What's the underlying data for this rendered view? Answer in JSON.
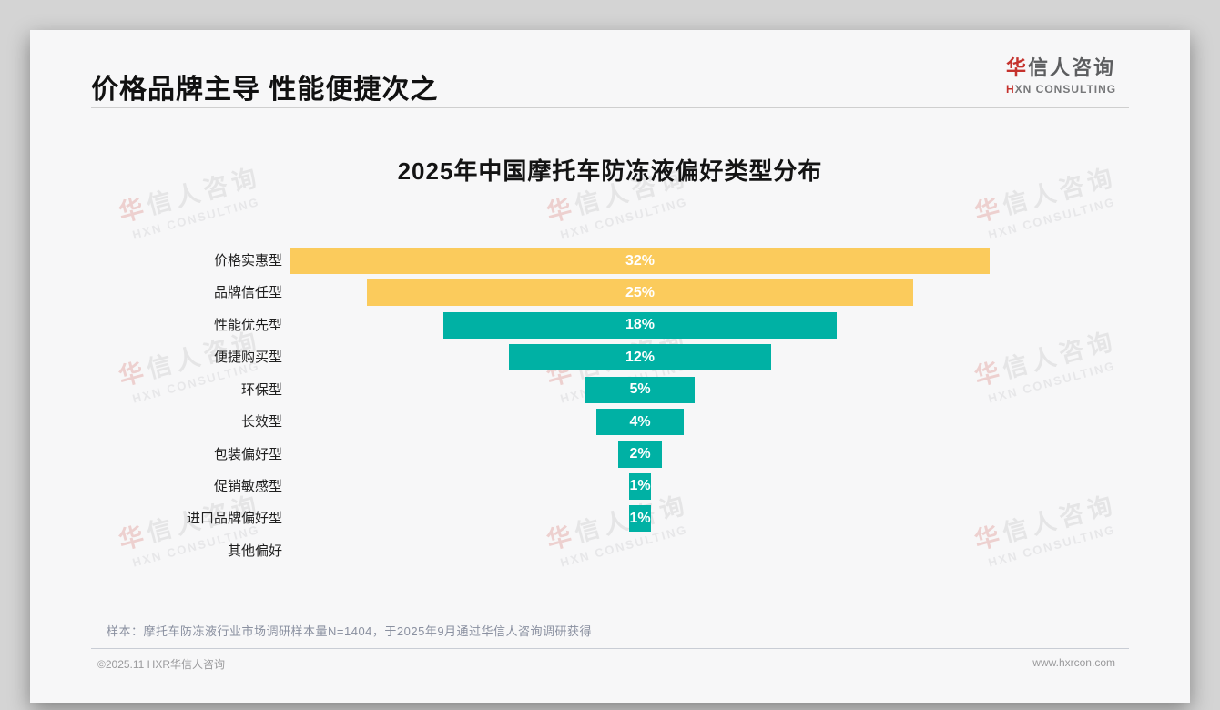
{
  "header": {
    "title": "价格品牌主导 性能便捷次之"
  },
  "logo": {
    "cn_first": "华",
    "cn_rest": "信人咨询",
    "en_first": "H",
    "en_rest": "XN CONSULTING"
  },
  "watermark": {
    "cn_first": "华",
    "cn_rest": "信人咨询",
    "en": "HXN CONSULTING"
  },
  "chart_data": {
    "type": "bar",
    "subtype": "centered-funnel-horizontal",
    "title": "2025年中国摩托车防冻液偏好类型分布",
    "categories": [
      "价格实惠型",
      "品牌信任型",
      "性能优先型",
      "便捷购买型",
      "环保型",
      "长效型",
      "包装偏好型",
      "促销敏感型",
      "进口品牌偏好型",
      "其他偏好"
    ],
    "values": [
      32,
      25,
      18,
      12,
      5,
      4,
      2,
      1,
      1,
      0
    ],
    "value_suffix": "%",
    "bar_colors": [
      "#fbcb5c",
      "#fbcb5c",
      "#00b1a4",
      "#00b1a4",
      "#00b1a4",
      "#00b1a4",
      "#00b1a4",
      "#00b1a4",
      "#00b1a4",
      "#00b1a4"
    ],
    "accent_yellow": "#fbcb5c",
    "accent_teal": "#00b1a4",
    "xlim": [
      0,
      32
    ],
    "grid": false,
    "legend": false,
    "data_labels_inside": true,
    "data_label_color": "#ffffff"
  },
  "footnote": "样本：摩托车防冻液行业市场调研样本量N=1404，于2025年9月通过华信人咨询调研获得",
  "footer": {
    "copyright": "©2025.11 HXR华信人咨询",
    "website": "www.hxrcon.com"
  }
}
